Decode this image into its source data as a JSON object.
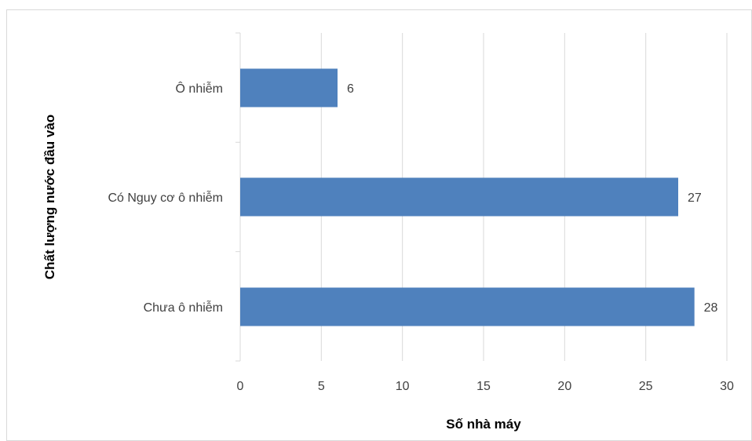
{
  "chart_data": {
    "type": "bar",
    "orientation": "horizontal",
    "categories": [
      "Ô nhiễm",
      "Có Nguy cơ ô nhiễm",
      "Chưa ô nhiễm"
    ],
    "values": [
      6,
      27,
      28
    ],
    "title": "",
    "xlabel": "Số nhà máy",
    "ylabel": "Chất lượng nước đầu vào",
    "xlim": [
      0,
      30
    ],
    "xticks": [
      0,
      5,
      10,
      15,
      20,
      25,
      30
    ],
    "grid": "vertical",
    "legend": "none",
    "bar_color": "#4f81bd",
    "data_labels": true
  }
}
